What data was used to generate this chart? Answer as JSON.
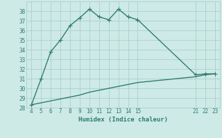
{
  "xlabel": "Humidex (Indice chaleur)",
  "line1_x": [
    4,
    5,
    6,
    7,
    8,
    9,
    10,
    11,
    12,
    13,
    14,
    15,
    21,
    22,
    23
  ],
  "line1_y": [
    28.3,
    31.0,
    33.8,
    35.0,
    36.5,
    37.3,
    38.2,
    37.4,
    37.1,
    38.2,
    37.4,
    37.1,
    31.4,
    31.5,
    31.5
  ],
  "line2_x": [
    4,
    5,
    6,
    7,
    8,
    9,
    10,
    11,
    12,
    13,
    14,
    15,
    21,
    22,
    23
  ],
  "line2_y": [
    28.3,
    28.5,
    28.7,
    28.9,
    29.1,
    29.3,
    29.6,
    29.8,
    30.0,
    30.2,
    30.4,
    30.6,
    31.2,
    31.4,
    31.5
  ],
  "line_color": "#2e7d6e",
  "bg_color": "#ceeae6",
  "grid_color": "#aacfcb",
  "tick_color": "#2e7d6e",
  "xlim": [
    3.5,
    23.5
  ],
  "ylim": [
    28,
    39
  ],
  "xticks": [
    4,
    5,
    6,
    7,
    8,
    9,
    10,
    11,
    12,
    13,
    14,
    15,
    21,
    22,
    23
  ],
  "yticks": [
    28,
    29,
    30,
    31,
    32,
    33,
    34,
    35,
    36,
    37,
    38
  ],
  "marker_size": 2.5,
  "line_width": 1.0
}
